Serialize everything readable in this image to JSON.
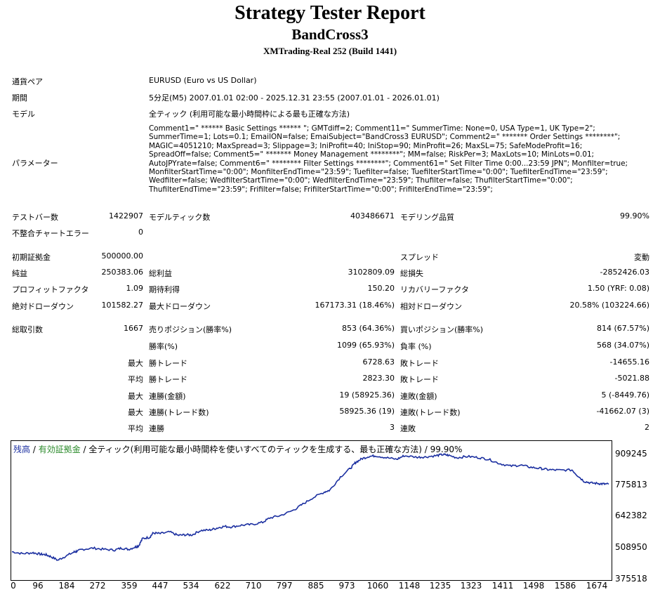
{
  "header": {
    "title": "Strategy Tester Report",
    "ea_name": "BandCross3",
    "server": "XMTrading-Real 252 (Build 1441)"
  },
  "info": {
    "symbol_label": "通貨ペア",
    "symbol_value": "EURUSD (Euro vs US Dollar)",
    "period_label": "期間",
    "period_value": "5分足(M5) 2007.01.01 02:00 - 2025.12.31 23:55 (2007.01.01 - 2026.01.01)",
    "model_label": "モデル",
    "model_value": "全ティック (利用可能な最小時間枠による最も正確な方法)",
    "params_label": "パラメーター",
    "params_value": "Comment1=\" ****** Basic Settings ****** \"; GMTdiff=2; Comment11=\" SummerTime: None=0, USA Type=1, UK Type=2\";\nSummerTime=1; Lots=0.1; EmailON=false; EmaiSubject=\"BandCross3 EURUSD\"; Comment2=\" ******* Order Settings ********\";\nMAGIC=4051210; MaxSpread=3; Slippage=3; IniProfit=40; IniStop=90; MinProfit=26; MaxSL=75; SafeModeProfit=16;\nSpreadOff=false; Comment5=\" ******* Money Management ********\"; MM=false; RiskPer=3; MaxLots=10; MinLots=0.01;\nAutoJPYrate=false; Comment6=\" ******** Filter Settings ********\"; Comment61=\" Set Filter Time 0:00...23:59 JPN\"; Monfilter=true;\nMonfilterStartTime=\"0:00\"; MonfilterEndTime=\"23:59\"; Tuefilter=false; TuefilterStartTime=\"0:00\"; TuefilterEndTime=\"23:59\";\nWedfilter=false; WedfilterStartTime=\"0:00\"; WedfilterEndTime=\"23:59\"; Thufilter=false; ThufilterStartTime=\"0:00\";\nThufilterEndTime=\"23:59\"; Frifilter=false; FrifilterStartTime=\"0:00\"; FrifilterEndTime=\"23:59\";"
  },
  "stats": {
    "bars_label": "テストバー数",
    "bars_value": "1422907",
    "ticks_label": "モデルティック数",
    "ticks_value": "403486671",
    "quality_label": "モデリング品質",
    "quality_value": "99.90%",
    "errors_label": "不整合チャートエラー",
    "errors_value": "0",
    "deposit_label": "初期証拠金",
    "deposit_value": "500000.00",
    "spread_label": "スプレッド",
    "spread_value": "変動",
    "netprofit_label": "純益",
    "netprofit_value": "250383.06",
    "grossprofit_label": "総利益",
    "grossprofit_value": "3102809.09",
    "grossloss_label": "総損失",
    "grossloss_value": "-2852426.03",
    "pf_label": "プロフィットファクタ",
    "pf_value": "1.09",
    "expected_label": "期待利得",
    "expected_value": "150.20",
    "recovery_label": "リカバリーファクタ",
    "recovery_value": "1.50 (YRF: 0.08)",
    "absdd_label": "絶対ドローダウン",
    "absdd_value": "101582.27",
    "maxdd_label": "最大ドローダウン",
    "maxdd_value": "167173.31 (18.46%)",
    "reldd_label": "相対ドローダウン",
    "reldd_value": "20.58% (103224.66)",
    "trades_label": "総取引数",
    "trades_value": "1667",
    "short_label": "売りポジション(勝率%)",
    "short_value": "853 (64.36%)",
    "long_label": "買いポジション(勝率%)",
    "long_value": "814 (67.57%)",
    "winrate_label": "勝率(%)",
    "winrate_value": "1099 (65.93%)",
    "lossrate_label": "負率 (%)",
    "lossrate_value": "568 (34.07%)",
    "max_label": "最大",
    "avg_label": "平均",
    "winTrade_label": "勝トレード",
    "max_win_value": "6728.63",
    "lossTrade_label": "敗トレード",
    "max_loss_value": "-14655.16",
    "avg_win_value": "2823.30",
    "avg_loss_value": "-5021.88",
    "consec_win_amt_label": "連勝(金額)",
    "consec_win_amt_value": "19 (58925.36)",
    "consec_loss_amt_label": "連敗(金額)",
    "consec_loss_amt_value": "5 (-8449.76)",
    "consec_win_cnt_label": "連勝(トレード数)",
    "consec_win_cnt_value": "58925.36 (19)",
    "consec_loss_cnt_label": "連敗(トレード数)",
    "consec_loss_cnt_value": "-41662.07 (3)",
    "avg_consec_win_label": "連勝",
    "avg_consec_win_value": "3",
    "avg_consec_loss_label": "連敗",
    "avg_consec_loss_value": "2"
  },
  "chart_legend": {
    "balance": "残高",
    "sep1": " / ",
    "equity": "有効証拠金",
    "sep2": " / ",
    "rest": "全ティック(利用可能な最小時間枠を使いすべてのティックを生成する、最も正確な方法) / 99.90%"
  },
  "colors": {
    "line": "#1b2fa0",
    "equity": "#2a8a2a"
  },
  "chart_data": {
    "type": "line",
    "title": "",
    "xlabel": "",
    "ylabel": "",
    "x_ticks": [
      "0",
      "96",
      "184",
      "272",
      "359",
      "447",
      "534",
      "622",
      "710",
      "797",
      "885",
      "973",
      "1060",
      "1148",
      "1235",
      "1323",
      "1411",
      "1498",
      "1586",
      "1674"
    ],
    "y_ticks": [
      "909245",
      "775813",
      "642382",
      "508950",
      "375518"
    ],
    "xlim": [
      0,
      1690
    ],
    "ylim": [
      375518,
      949000
    ],
    "series": [
      {
        "x": [
          0,
          30,
          60,
          80,
          95,
          110,
          130,
          150,
          175,
          184,
          200,
          230,
          260,
          290,
          310,
          330,
          350,
          359,
          370,
          390,
          400,
          420,
          447,
          470,
          490,
          510,
          534,
          560,
          580,
          600,
          622,
          650,
          680,
          710,
          730,
          760,
          797,
          820,
          850,
          885,
          900,
          930,
          960,
          973,
          990,
          1010,
          1030,
          1060,
          1090,
          1110,
          1148,
          1170,
          1200,
          1220,
          1235,
          1260,
          1290,
          1323,
          1350,
          1380,
          1411,
          1440,
          1470,
          1498,
          1520,
          1550,
          1586,
          1600,
          1620,
          1640,
          1660,
          1674,
          1690
        ],
        "y": [
          490000,
          482000,
          486000,
          480000,
          478000,
          470000,
          455000,
          470000,
          488000,
          492000,
          500000,
          505000,
          500000,
          497000,
          505000,
          500000,
          510000,
          515000,
          545000,
          550000,
          568000,
          565000,
          572000,
          558000,
          560000,
          560000,
          578000,
          580000,
          588000,
          595000,
          593000,
          600000,
          603000,
          612000,
          630000,
          640000,
          662000,
          684000,
          712000,
          738000,
          745000,
          800000,
          838000,
          860000,
          875000,
          885000,
          888000,
          880000,
          873000,
          888000,
          882000,
          883000,
          888000,
          893000,
          890000,
          880000,
          885000,
          880000,
          873000,
          856000,
          845000,
          849000,
          840000,
          835000,
          830000,
          828000,
          829000,
          808000,
          782000,
          775000,
          773000,
          771000,
          770000
        ]
      }
    ]
  }
}
